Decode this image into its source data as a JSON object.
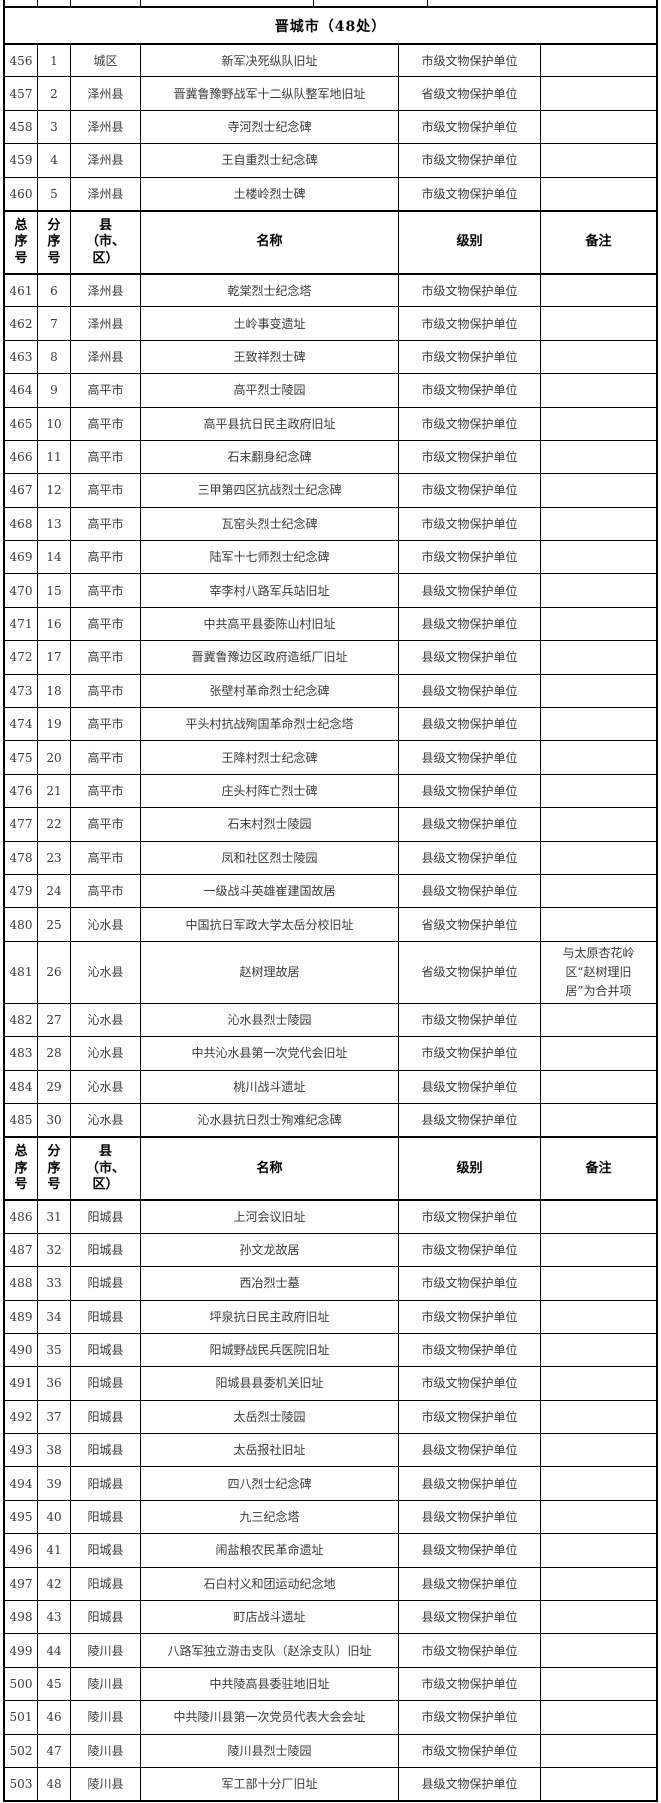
{
  "section_title": "晋城市（48处）",
  "headers": [
    "总\n序\n号",
    "分\n序\n号",
    "县\n（市、\n区）",
    "名称",
    "级别",
    "备注"
  ],
  "rows": [
    {
      "type": "spacer"
    },
    {
      "type": "city-header"
    },
    {
      "type": "data",
      "no": "456",
      "sub": "1",
      "county": "城区",
      "name": "新军决死纵队旧址",
      "level": "市级文物保护单位",
      "remark": ""
    },
    {
      "type": "data",
      "no": "457",
      "sub": "2",
      "county": "泽州县",
      "name": "晋冀鲁豫野战军十二纵队整军地旧址",
      "level": "省级文物保护单位",
      "remark": ""
    },
    {
      "type": "data",
      "no": "458",
      "sub": "3",
      "county": "泽州县",
      "name": "寺河烈士纪念碑",
      "level": "市级文物保护单位",
      "remark": ""
    },
    {
      "type": "data",
      "no": "459",
      "sub": "4",
      "county": "泽州县",
      "name": "王自重烈士纪念碑",
      "level": "市级文物保护单位",
      "remark": ""
    },
    {
      "type": "data",
      "no": "460",
      "sub": "5",
      "county": "泽州县",
      "name": "土楼岭烈士碑",
      "level": "市级文物保护单位",
      "remark": ""
    },
    {
      "type": "col-header"
    },
    {
      "type": "data",
      "no": "461",
      "sub": "6",
      "county": "泽州县",
      "name": "乾棠烈士纪念塔",
      "level": "市级文物保护单位",
      "remark": ""
    },
    {
      "type": "data",
      "no": "462",
      "sub": "7",
      "county": "泽州县",
      "name": "土岭事变遗址",
      "level": "市级文物保护单位",
      "remark": ""
    },
    {
      "type": "data",
      "no": "463",
      "sub": "8",
      "county": "泽州县",
      "name": "王致祥烈士碑",
      "level": "市级文物保护单位",
      "remark": ""
    },
    {
      "type": "data",
      "no": "464",
      "sub": "9",
      "county": "高平市",
      "name": "高平烈士陵园",
      "level": "市级文物保护单位",
      "remark": ""
    },
    {
      "type": "data",
      "no": "465",
      "sub": "10",
      "county": "高平市",
      "name": "高平县抗日民主政府旧址",
      "level": "市级文物保护单位",
      "remark": ""
    },
    {
      "type": "data",
      "no": "466",
      "sub": "11",
      "county": "高平市",
      "name": "石末翻身纪念碑",
      "level": "市级文物保护单位",
      "remark": ""
    },
    {
      "type": "data",
      "no": "467",
      "sub": "12",
      "county": "高平市",
      "name": "三甲第四区抗战烈士纪念碑",
      "level": "市级文物保护单位",
      "remark": ""
    },
    {
      "type": "data",
      "no": "468",
      "sub": "13",
      "county": "高平市",
      "name": "瓦窑头烈士纪念碑",
      "level": "市级文物保护单位",
      "remark": ""
    },
    {
      "type": "data",
      "no": "469",
      "sub": "14",
      "county": "高平市",
      "name": "陆军十七师烈士纪念碑",
      "level": "市级文物保护单位",
      "remark": ""
    },
    {
      "type": "data",
      "no": "470",
      "sub": "15",
      "county": "高平市",
      "name": "宰李村八路军兵站旧址",
      "level": "县级文物保护单位",
      "remark": ""
    },
    {
      "type": "data",
      "no": "471",
      "sub": "16",
      "county": "高平市",
      "name": "中共高平县委陈山村旧址",
      "level": "县级文物保护单位",
      "remark": ""
    },
    {
      "type": "data",
      "no": "472",
      "sub": "17",
      "county": "高平市",
      "name": "晋冀鲁豫边区政府造纸厂旧址",
      "level": "县级文物保护单位",
      "remark": ""
    },
    {
      "type": "data",
      "no": "473",
      "sub": "18",
      "county": "高平市",
      "name": "张壁村革命烈士纪念碑",
      "level": "县级文物保护单位",
      "remark": ""
    },
    {
      "type": "data",
      "no": "474",
      "sub": "19",
      "county": "高平市",
      "name": "平头村抗战殉国革命烈士纪念塔",
      "level": "县级文物保护单位",
      "remark": ""
    },
    {
      "type": "data",
      "no": "475",
      "sub": "20",
      "county": "高平市",
      "name": "王降村烈士纪念碑",
      "level": "县级文物保护单位",
      "remark": ""
    },
    {
      "type": "data",
      "no": "476",
      "sub": "21",
      "county": "高平市",
      "name": "庄头村阵亡烈士碑",
      "level": "县级文物保护单位",
      "remark": ""
    },
    {
      "type": "data",
      "no": "477",
      "sub": "22",
      "county": "高平市",
      "name": "石末村烈士陵园",
      "level": "县级文物保护单位",
      "remark": ""
    },
    {
      "type": "data",
      "no": "478",
      "sub": "23",
      "county": "高平市",
      "name": "凤和社区烈士陵园",
      "level": "县级文物保护单位",
      "remark": ""
    },
    {
      "type": "data",
      "no": "479",
      "sub": "24",
      "county": "高平市",
      "name": "一级战斗英雄崔建国故居",
      "level": "县级文物保护单位",
      "remark": ""
    },
    {
      "type": "data",
      "no": "480",
      "sub": "25",
      "county": "沁水县",
      "name": "中国抗日军政大学太岳分校旧址",
      "level": "省级文物保护单位",
      "remark": ""
    },
    {
      "type": "data",
      "no": "481",
      "sub": "26",
      "county": "沁水县",
      "name": "赵树理故居",
      "level": "省级文物保护单位",
      "remark": "与太原杏花岭区“赵树理旧居”为合并项"
    },
    {
      "type": "data",
      "no": "482",
      "sub": "27",
      "county": "沁水县",
      "name": "沁水县烈士陵园",
      "level": "市级文物保护单位",
      "remark": ""
    },
    {
      "type": "data",
      "no": "483",
      "sub": "28",
      "county": "沁水县",
      "name": "中共沁水县第一次党代会旧址",
      "level": "市级文物保护单位",
      "remark": ""
    },
    {
      "type": "data",
      "no": "484",
      "sub": "29",
      "county": "沁水县",
      "name": "桃川战斗遗址",
      "level": "县级文物保护单位",
      "remark": ""
    },
    {
      "type": "data",
      "no": "485",
      "sub": "30",
      "county": "沁水县",
      "name": "沁水县抗日烈士殉难纪念碑",
      "level": "县级文物保护单位",
      "remark": ""
    },
    {
      "type": "col-header"
    },
    {
      "type": "data",
      "no": "486",
      "sub": "31",
      "county": "阳城县",
      "name": "上河会议旧址",
      "level": "市级文物保护单位",
      "remark": ""
    },
    {
      "type": "data",
      "no": "487",
      "sub": "32",
      "county": "阳城县",
      "name": "孙文龙故居",
      "level": "市级文物保护单位",
      "remark": ""
    },
    {
      "type": "data",
      "no": "488",
      "sub": "33",
      "county": "阳城县",
      "name": "西冶烈士墓",
      "level": "市级文物保护单位",
      "remark": ""
    },
    {
      "type": "data",
      "no": "489",
      "sub": "34",
      "county": "阳城县",
      "name": "坪泉抗日民主政府旧址",
      "level": "市级文物保护单位",
      "remark": ""
    },
    {
      "type": "data",
      "no": "490",
      "sub": "35",
      "county": "阳城县",
      "name": "阳城野战民兵医院旧址",
      "level": "市级文物保护单位",
      "remark": ""
    },
    {
      "type": "data",
      "no": "491",
      "sub": "36",
      "county": "阳城县",
      "name": "阳城县县委机关旧址",
      "level": "市级文物保护单位",
      "remark": ""
    },
    {
      "type": "data",
      "no": "492",
      "sub": "37",
      "county": "阳城县",
      "name": "太岳烈士陵园",
      "level": "市级文物保护单位",
      "remark": ""
    },
    {
      "type": "data",
      "no": "493",
      "sub": "38",
      "county": "阳城县",
      "name": "太岳报社旧址",
      "level": "县级文物保护单位",
      "remark": ""
    },
    {
      "type": "data",
      "no": "494",
      "sub": "39",
      "county": "阳城县",
      "name": "四八烈士纪念碑",
      "level": "县级文物保护单位",
      "remark": ""
    },
    {
      "type": "data",
      "no": "495",
      "sub": "40",
      "county": "阳城县",
      "name": "九三纪念塔",
      "level": "县级文物保护单位",
      "remark": ""
    },
    {
      "type": "data",
      "no": "496",
      "sub": "41",
      "county": "阳城县",
      "name": "闹盐粮农民革命遗址",
      "level": "县级文物保护单位",
      "remark": ""
    },
    {
      "type": "data",
      "no": "497",
      "sub": "42",
      "county": "阳城县",
      "name": "石白村义和团运动纪念地",
      "level": "县级文物保护单位",
      "remark": ""
    },
    {
      "type": "data",
      "no": "498",
      "sub": "43",
      "county": "阳城县",
      "name": "町店战斗遗址",
      "level": "县级文物保护单位",
      "remark": ""
    },
    {
      "type": "data",
      "no": "499",
      "sub": "44",
      "county": "陵川县",
      "name": "八路军独立游击支队（赵涂支队）旧址",
      "level": "市级文物保护单位",
      "remark": ""
    },
    {
      "type": "data",
      "no": "500",
      "sub": "45",
      "county": "陵川县",
      "name": "中共陵高县委驻地旧址",
      "level": "市级文物保护单位",
      "remark": ""
    },
    {
      "type": "data",
      "no": "501",
      "sub": "46",
      "county": "陵川县",
      "name": "中共陵川县第一次党员代表大会会址",
      "level": "市级文物保护单位",
      "remark": ""
    },
    {
      "type": "data",
      "no": "502",
      "sub": "47",
      "county": "陵川县",
      "name": "陵川县烈士陵园",
      "level": "市级文物保护单位",
      "remark": ""
    },
    {
      "type": "data",
      "no": "503",
      "sub": "48",
      "county": "陵川县",
      "name": "军工部十分厂旧址",
      "level": "县级文物保护单位",
      "remark": ""
    }
  ]
}
